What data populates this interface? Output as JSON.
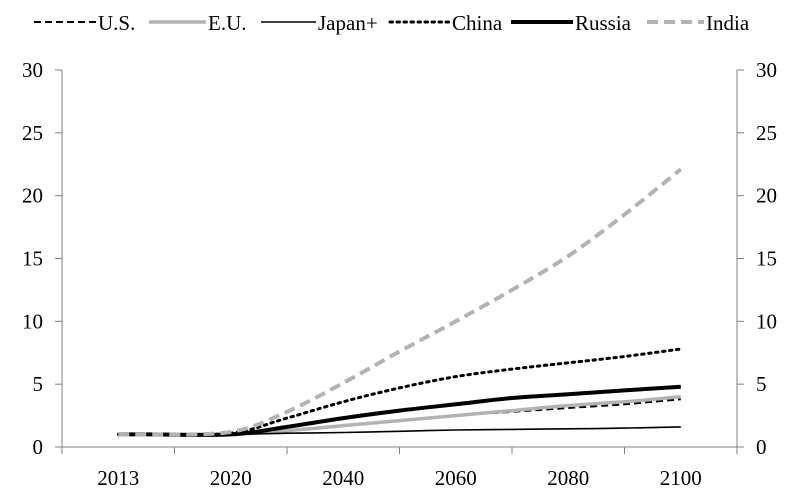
{
  "chart_data": {
    "type": "line",
    "title": "",
    "xlabel": "",
    "ylabel": "",
    "x_categories": [
      "2013",
      "2020",
      "2040",
      "2060",
      "2080",
      "2100"
    ],
    "x": [
      2013,
      2015,
      2020,
      2030,
      2040,
      2050,
      2060,
      2070,
      2080,
      2090,
      2100
    ],
    "ylim": [
      0,
      30
    ],
    "y_ticks": [
      "0",
      "5",
      "10",
      "15",
      "20",
      "25",
      "30"
    ],
    "y_ticks_right": [
      "0",
      "5",
      "10",
      "15",
      "20",
      "25",
      "30"
    ],
    "grid": false,
    "legend_position": "top",
    "series": [
      {
        "name": "U.S.",
        "color": "#000000",
        "style": "dashed",
        "values": [
          1,
          1,
          1,
          1.3,
          1.7,
          2.1,
          2.5,
          2.8,
          3.1,
          3.4,
          3.8
        ]
      },
      {
        "name": "E.U.",
        "color": "#b3b3b3",
        "style": "solid",
        "values": [
          1,
          1,
          1,
          1.3,
          1.7,
          2.1,
          2.5,
          2.9,
          3.3,
          3.6,
          4.0
        ]
      },
      {
        "name": "Japan+",
        "color": "#000000",
        "style": "thin",
        "values": [
          1,
          1,
          1,
          1.1,
          1.15,
          1.25,
          1.35,
          1.4,
          1.45,
          1.5,
          1.6
        ]
      },
      {
        "name": "China",
        "color": "#000000",
        "style": "dotted",
        "values": [
          1,
          1,
          1.1,
          2.3,
          3.6,
          4.7,
          5.6,
          6.2,
          6.7,
          7.2,
          7.8
        ]
      },
      {
        "name": "Russia",
        "color": "#000000",
        "style": "thick",
        "values": [
          1,
          1,
          1,
          1.6,
          2.3,
          2.9,
          3.4,
          3.9,
          4.2,
          4.5,
          4.8
        ]
      },
      {
        "name": "India",
        "color": "#b3b3b3",
        "style": "dashed-thick",
        "values": [
          1,
          1,
          1.2,
          2.8,
          5.1,
          7.6,
          10.0,
          12.5,
          15.2,
          18.5,
          22.1
        ]
      }
    ]
  }
}
